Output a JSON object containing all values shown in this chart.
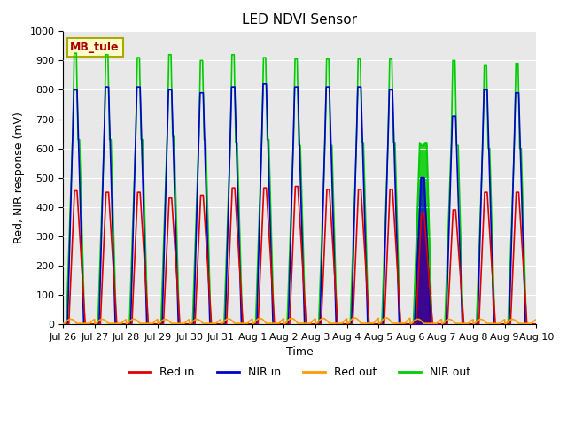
{
  "title": "LED NDVI Sensor",
  "xlabel": "Time",
  "ylabel": "Red, NIR response (mV)",
  "ylim": [
    0,
    1000
  ],
  "annotation_text": "MB_tule",
  "bg_color": "#e8e8e8",
  "legend": {
    "labels": [
      "Red in",
      "NIR in",
      "Red out",
      "NIR out"
    ],
    "colors": [
      "#dd0000",
      "#0000cc",
      "#ff9900",
      "#00cc00"
    ]
  },
  "x_tick_labels": [
    "Jul 26",
    "Jul 27",
    "Jul 28",
    "Jul 29",
    "Jul 30",
    "Jul 31",
    "Aug 1",
    "Aug 2",
    "Aug 3",
    "Aug 4",
    "Aug 5",
    "Aug 6",
    "Aug 7",
    "Aug 8",
    "Aug 9",
    "Aug 10"
  ],
  "red_in_peaks": [
    455,
    450,
    450,
    430,
    440,
    465,
    465,
    470,
    460,
    460,
    460,
    380,
    390,
    450,
    450
  ],
  "nir_in_peaks": [
    800,
    810,
    810,
    800,
    790,
    810,
    820,
    810,
    810,
    810,
    800,
    500,
    710,
    800,
    790
  ],
  "red_out_peaks": [
    28,
    27,
    28,
    27,
    27,
    30,
    32,
    32,
    32,
    35,
    35,
    28,
    27,
    27,
    27
  ],
  "nir_out_peaks": [
    925,
    920,
    910,
    920,
    900,
    920,
    910,
    905,
    905,
    905,
    905,
    610,
    900,
    885,
    890
  ],
  "nir_out_shoulder": [
    630,
    630,
    630,
    640,
    630,
    620,
    630,
    610,
    610,
    620,
    620,
    620,
    610,
    600,
    600
  ],
  "num_cycles": 15,
  "aug6_green_fill": true,
  "aug6_red_fill": true
}
